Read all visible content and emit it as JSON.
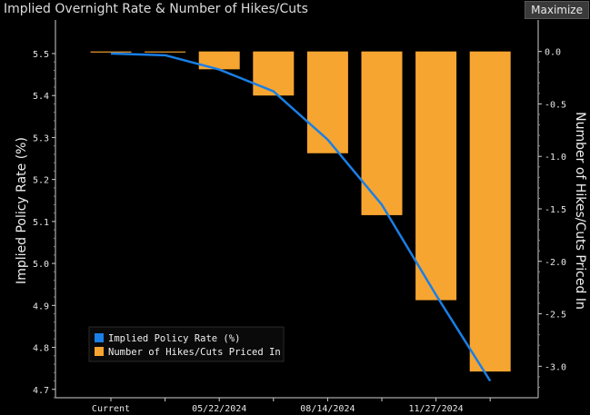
{
  "window": {
    "title": "Implied Overnight Rate & Number of Hikes/Cuts",
    "maximize_label": "Maximize"
  },
  "chart_data": {
    "type": "bar",
    "title": "Implied Overnight Rate & Number of Hikes/Cuts",
    "categories": [
      "Current",
      "",
      "05/22/2024",
      "",
      "08/14/2024",
      "",
      "11/27/2024",
      ""
    ],
    "x_tick_labels": [
      "Current",
      "05/22/2024",
      "08/14/2024",
      "11/27/2024"
    ],
    "ylabel_left": "Implied Policy Rate (%)",
    "ylabel_right": "Number of Hikes/Cuts Priced In",
    "ylim_left": [
      4.68,
      5.58
    ],
    "ylim_right": [
      -3.3,
      0.3
    ],
    "yticks_left": [
      "5.5",
      "5.4",
      "5.3",
      "5.2",
      "5.1",
      "5.0",
      "4.9",
      "4.8",
      "4.7"
    ],
    "yticks_right": [
      "0.0",
      "-0.5",
      "-1.0",
      "-1.5",
      "-2.0",
      "-2.5",
      "-3.0"
    ],
    "series": [
      {
        "name": "Implied Policy Rate (%)",
        "type": "line",
        "axis": "left",
        "color": "#1a7fe6",
        "x": [
          0,
          1,
          2,
          3,
          4,
          5,
          6,
          7
        ],
        "values": [
          5.5,
          5.496,
          5.462,
          5.41,
          5.295,
          5.14,
          4.925,
          4.72
        ]
      },
      {
        "name": "Number of Hikes/Cuts Priced In",
        "type": "bar",
        "axis": "right",
        "color": "#f7a531",
        "x": [
          0,
          1,
          2,
          3,
          4,
          5,
          6,
          7
        ],
        "values": [
          -0.01,
          -0.01,
          -0.17,
          -0.42,
          -0.97,
          -1.56,
          -2.37,
          -3.05
        ]
      }
    ],
    "legend_position": "bottom-left",
    "grid": false
  }
}
